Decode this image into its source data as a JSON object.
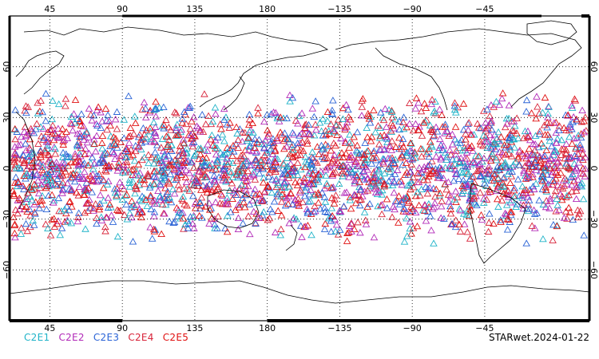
{
  "map": {
    "projection": "equirectangular",
    "center_lon": 180,
    "lon_range": [
      20,
      380
    ],
    "lat_range": [
      -90,
      90
    ],
    "grid": "dotted",
    "top_lon_labels": [
      "45",
      "90",
      "135",
      "180",
      "−135",
      "−90",
      "−45"
    ],
    "bottom_lon_labels": [
      "45",
      "90",
      "135",
      "180",
      "−135",
      "−90",
      "−45"
    ],
    "lon_tick_values": [
      45,
      90,
      135,
      180,
      225,
      270,
      315
    ],
    "left_lat_labels": [
      "60",
      "30",
      "0",
      "−30",
      "−60"
    ],
    "right_lat_labels": [
      "60",
      "30",
      "0",
      "−30",
      "−60"
    ],
    "lat_tick_values": [
      60,
      30,
      0,
      -30,
      -60
    ],
    "marker": "open-triangle",
    "observation_lat_band": [
      -45,
      45
    ]
  },
  "legend": {
    "items": [
      {
        "label": "C2E1",
        "color": "#1fb3c8"
      },
      {
        "label": "C2E2",
        "color": "#b22ab8"
      },
      {
        "label": "C2E3",
        "color": "#2a63d6"
      },
      {
        "label": "C2E4",
        "color": "#d8243a"
      },
      {
        "label": "C2E5",
        "color": "#e01010"
      }
    ]
  },
  "stamp": "STARwet.2024-01-22",
  "colors": {
    "land_outline": "#000000",
    "frame": "#000000",
    "grid": "#000000"
  }
}
